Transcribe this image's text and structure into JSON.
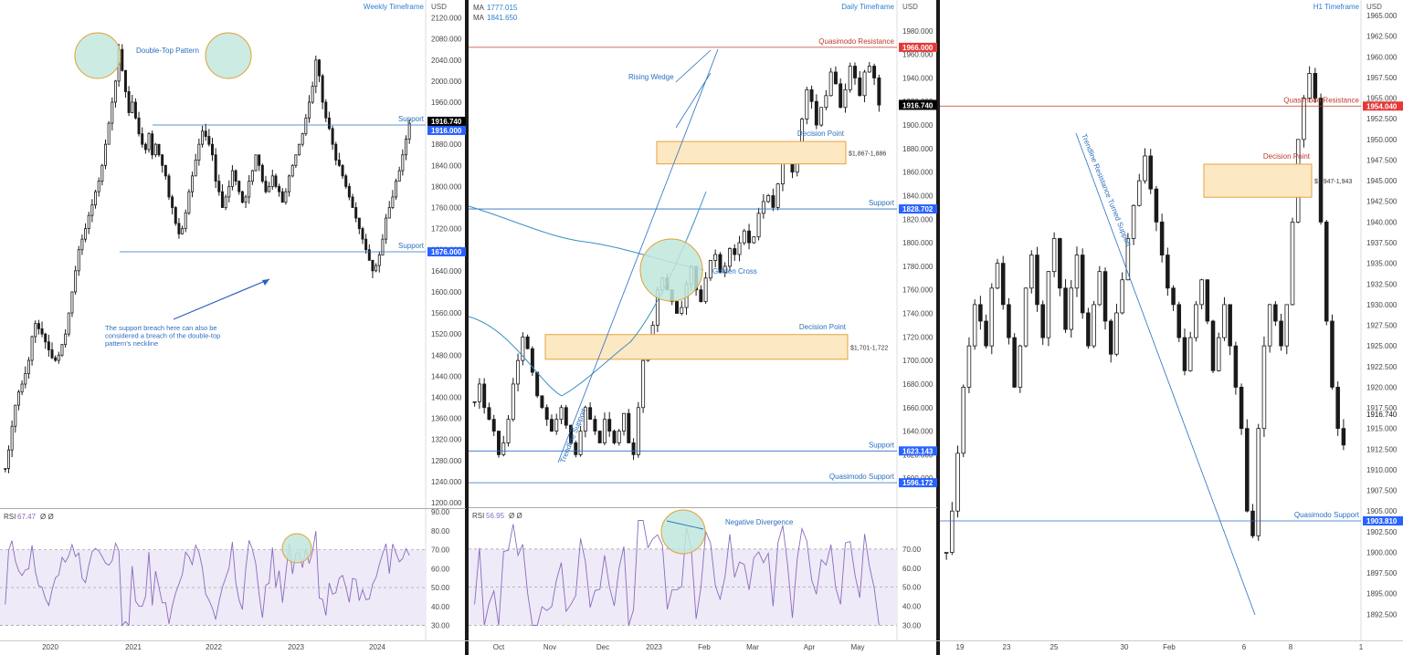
{
  "colors": {
    "candle": "#1a1a1a",
    "blue_line": "#2a6fbf",
    "red_line": "#c0392b",
    "ma_line": "#3a8fc4",
    "rsi_line": "#8a6bbf",
    "rsi_band": "#efeaf7",
    "zone_fill": "#fde8c4",
    "zone_stroke": "#e6a23c",
    "circle_fill": "#bfe6dc",
    "circle_stroke": "#e0a030",
    "separator": "#1a1a1a",
    "label_blue": "#2962ff",
    "label_red": "#e53935",
    "label_black": "#000000"
  },
  "chart_data": [
    {
      "type": "candlestick",
      "title": "Weekly Timeframe",
      "currency": "USD",
      "ylim": [
        1200,
        2140
      ],
      "y_ticks": [
        "2120.000",
        "2080.000",
        "2040.000",
        "2000.000",
        "1960.000",
        "1920.000",
        "1880.000",
        "1840.000",
        "1800.000",
        "1760.000",
        "1720.000",
        "1680.000",
        "1640.000",
        "1600.000",
        "1560.000",
        "1520.000",
        "1480.000",
        "1440.000",
        "1400.000",
        "1360.000",
        "1320.000",
        "1280.000",
        "1240.000",
        "1200.000"
      ],
      "x_ticks": [
        "2020",
        "2021",
        "2022",
        "2023",
        "2024"
      ],
      "closes": [
        1265,
        1300,
        1345,
        1385,
        1410,
        1425,
        1445,
        1470,
        1515,
        1540,
        1530,
        1520,
        1505,
        1490,
        1475,
        1470,
        1480,
        1500,
        1520,
        1560,
        1600,
        1640,
        1680,
        1700,
        1720,
        1745,
        1765,
        1790,
        1810,
        1840,
        1880,
        1920,
        1960,
        2000,
        2060,
        2020,
        1980,
        1940,
        1960,
        1930,
        1900,
        1880,
        1870,
        1900,
        1860,
        1880,
        1860,
        1840,
        1820,
        1780,
        1760,
        1730,
        1710,
        1720,
        1750,
        1790,
        1820,
        1850,
        1880,
        1905,
        1895,
        1880,
        1860,
        1810,
        1790,
        1760,
        1780,
        1800,
        1830,
        1810,
        1790,
        1770,
        1780,
        1810,
        1830,
        1860,
        1840,
        1810,
        1790,
        1800,
        1820,
        1800,
        1790,
        1770,
        1790,
        1820,
        1840,
        1860,
        1880,
        1900,
        1930,
        1960,
        1990,
        2040,
        2010,
        1960,
        1930,
        1910,
        1880,
        1850,
        1840,
        1820,
        1800,
        1780,
        1760,
        1740,
        1720,
        1700,
        1680,
        1660,
        1640,
        1650,
        1670,
        1700,
        1740,
        1760,
        1780,
        1810,
        1830,
        1860,
        1890,
        1920
      ],
      "levels": [
        {
          "label": "Support",
          "value": 1916.74,
          "tag": "1916.740",
          "tag2": "1916.000"
        },
        {
          "label": "Support",
          "value": 1676.0,
          "tag": "1676.000"
        }
      ],
      "annotations": [
        "Double-Top Pattern",
        "The support breach here can also be considered a breach of the double-top pattern's neckline"
      ],
      "rsi": {
        "label": "RSI",
        "value": "67.47",
        "extra": "Ø  Ø",
        "ylim": [
          25,
          90
        ],
        "y_ticks": [
          "90.00",
          "80.00",
          "70.00",
          "60.00",
          "50.00",
          "40.00",
          "30.00"
        ],
        "band": [
          30,
          70
        ]
      }
    },
    {
      "type": "candlestick",
      "title": "Daily Timeframe",
      "currency": "USD",
      "ylim": [
        1580,
        2000
      ],
      "y_ticks": [
        "1980.000",
        "1960.000",
        "1940.000",
        "1920.000",
        "1900.000",
        "1880.000",
        "1860.000",
        "1840.000",
        "1820.000",
        "1800.000",
        "1780.000",
        "1760.000",
        "1740.000",
        "1720.000",
        "1700.000",
        "1680.000",
        "1660.000",
        "1640.000",
        "1620.000",
        "1600.000"
      ],
      "x_ticks": [
        "Oct",
        "Nov",
        "Dec",
        "2023",
        "Feb",
        "Mar",
        "Apr",
        "May"
      ],
      "ma": [
        {
          "label": "MA",
          "value": "1777.015"
        },
        {
          "label": "MA",
          "value": "1841.650"
        }
      ],
      "closes": [
        1665,
        1680,
        1660,
        1650,
        1640,
        1620,
        1630,
        1650,
        1680,
        1700,
        1720,
        1710,
        1690,
        1670,
        1660,
        1650,
        1640,
        1650,
        1660,
        1645,
        1630,
        1620,
        1640,
        1660,
        1650,
        1640,
        1630,
        1650,
        1640,
        1630,
        1640,
        1655,
        1630,
        1620,
        1660,
        1700,
        1710,
        1730,
        1760,
        1770,
        1760,
        1750,
        1740,
        1745,
        1765,
        1780,
        1760,
        1750,
        1770,
        1785,
        1790,
        1775,
        1780,
        1795,
        1790,
        1800,
        1810,
        1800,
        1805,
        1825,
        1835,
        1840,
        1830,
        1850,
        1870,
        1880,
        1860,
        1875,
        1905,
        1930,
        1920,
        1900,
        1915,
        1925,
        1945,
        1935,
        1915,
        1930,
        1950,
        1940,
        1925,
        1945,
        1950,
        1940,
        1917
      ],
      "levels": [
        {
          "label": "Quasimodo Resistance",
          "value": 1966.0,
          "tag": "1966.000"
        },
        {
          "label": "Support",
          "value": 1828.702,
          "tag": "1828.702"
        },
        {
          "label": "Support",
          "value": 1623.143,
          "tag": "1623.143"
        },
        {
          "label": "Quasimodo Support",
          "value": 1596.172,
          "tag": "1596.172"
        }
      ],
      "zones": [
        {
          "label": "Decision Point",
          "range": "$1,867-1,886",
          "from": 1867,
          "to": 1886
        },
        {
          "label": "Decision Point",
          "range": "$1,701-1,722",
          "from": 1701,
          "to": 1722
        }
      ],
      "annotations": [
        "Rising Wedge",
        "Golden Cross",
        "Trendline Support"
      ],
      "current": "1916.740",
      "rsi": {
        "label": "RSI",
        "value": "56.95",
        "extra": "Ø  Ø",
        "ylim": [
          25,
          90
        ],
        "y_ticks": [
          "70.00",
          "60.00",
          "50.00",
          "40.00",
          "30.00"
        ],
        "band": [
          30,
          70
        ],
        "annotation": "Negative Divergence"
      }
    },
    {
      "type": "candlestick",
      "title": "H1 Timeframe",
      "currency": "USD",
      "ylim": [
        1890,
        1966
      ],
      "y_ticks": [
        "1965.000",
        "1962.500",
        "1960.000",
        "1957.500",
        "1955.000",
        "1952.500",
        "1950.000",
        "1947.500",
        "1945.000",
        "1942.500",
        "1940.000",
        "1937.500",
        "1935.000",
        "1932.500",
        "1930.000",
        "1927.500",
        "1925.000",
        "1922.500",
        "1920.000",
        "1917.500",
        "1915.000",
        "1912.500",
        "1910.000",
        "1907.500",
        "1905.000",
        "1902.500",
        "1900.000",
        "1897.500",
        "1895.000",
        "1892.500"
      ],
      "x_ticks": [
        "19",
        "23",
        "25",
        "30",
        "Feb",
        "6",
        "8",
        "1"
      ],
      "closes": [
        1900,
        1905,
        1912,
        1920,
        1925,
        1930,
        1928,
        1925,
        1932,
        1935,
        1930,
        1926,
        1920,
        1925,
        1932,
        1936,
        1930,
        1926,
        1934,
        1938,
        1932,
        1927,
        1932,
        1936,
        1929,
        1925,
        1930,
        1934,
        1928,
        1924,
        1929,
        1933,
        1938,
        1942,
        1945,
        1948,
        1944,
        1940,
        1936,
        1932,
        1930,
        1926,
        1922,
        1926,
        1930,
        1933,
        1928,
        1922,
        1926,
        1930,
        1925,
        1920,
        1915,
        1905,
        1902,
        1915,
        1925,
        1930,
        1928,
        1925,
        1930,
        1940,
        1950,
        1955,
        1958,
        1955,
        1940,
        1928,
        1920,
        1915,
        1913
      ],
      "levels": [
        {
          "label": "Quasimodo Resistance",
          "value": 1954.04,
          "tag": "1954.040"
        },
        {
          "label": "Quasimodo Support",
          "value": 1903.81,
          "tag": "1903.810"
        }
      ],
      "zones": [
        {
          "label": "Decision Point",
          "range": "$1,947-1,943",
          "from": 1943,
          "to": 1947
        }
      ],
      "annotations": [
        "Trendline Resistance Turned Support"
      ],
      "current": "1916.740"
    }
  ]
}
